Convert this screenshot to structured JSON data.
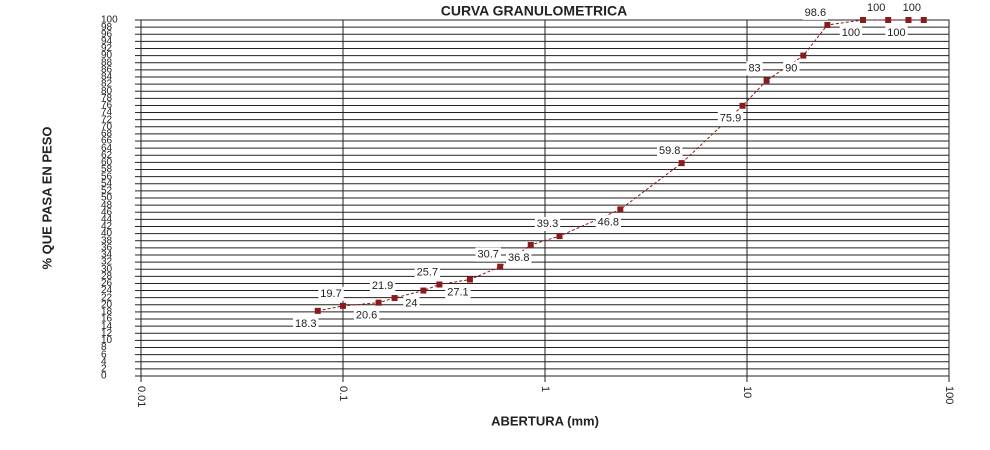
{
  "chart_data": {
    "type": "line",
    "title": "CURVA GRANULOMETRICA",
    "x_label": "ABERTURA (mm)",
    "y_label": "% QUE PASA EN PESO",
    "x": [
      0.075,
      0.1,
      0.15,
      0.18,
      0.25,
      0.3,
      0.425,
      0.6,
      0.85,
      1.18,
      2.36,
      4.75,
      9.5,
      12.5,
      19,
      25,
      37.5,
      50,
      63,
      75
    ],
    "series": [
      {
        "color": "#8b1a1a",
        "values": [
          18.3,
          19.7,
          20.6,
          21.9,
          24,
          25.7,
          27.1,
          30.7,
          36.8,
          39.3,
          46.8,
          59.8,
          75.9,
          83,
          90,
          98.6,
          100,
          100,
          100,
          100
        ]
      }
    ],
    "xlim": [
      0.01,
      100
    ],
    "xticks": [
      0.01,
      0.1,
      1,
      10,
      100
    ],
    "xscale": "log",
    "ylim": [
      0,
      100
    ],
    "yticks": [
      0,
      2,
      4,
      6,
      8,
      10,
      12,
      14,
      16,
      18,
      20,
      22,
      24,
      26,
      28,
      30,
      32,
      34,
      36,
      38,
      40,
      42,
      44,
      46,
      48,
      50,
      52,
      54,
      56,
      58,
      60,
      62,
      64,
      66,
      68,
      70,
      72,
      74,
      76,
      78,
      80,
      82,
      84,
      86,
      88,
      90,
      92,
      94,
      96,
      98,
      100
    ],
    "grid": true
  }
}
